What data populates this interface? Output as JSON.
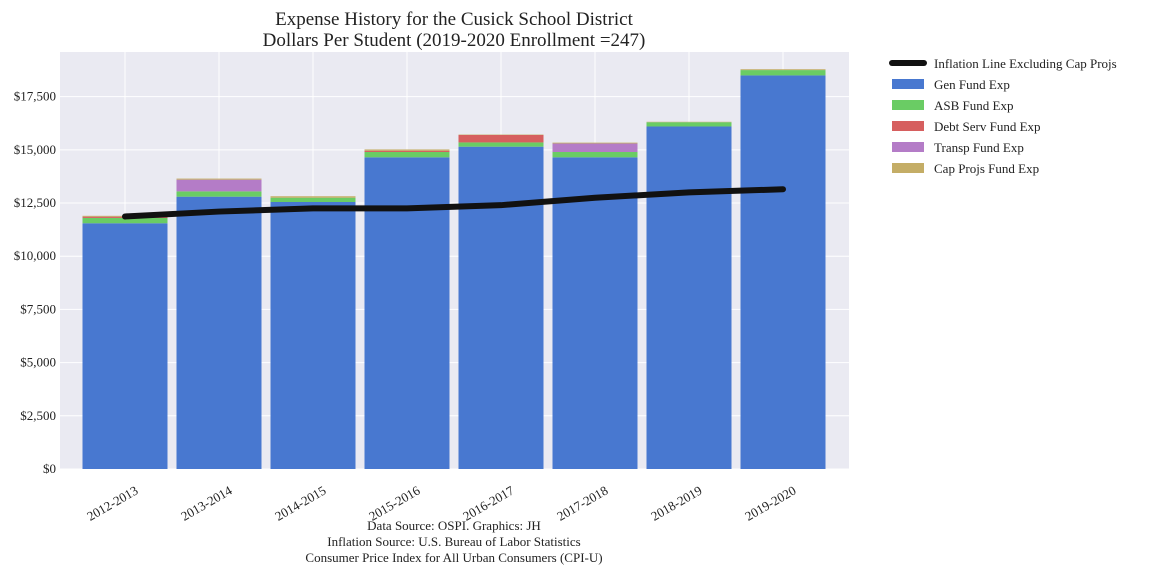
{
  "chart_data": {
    "type": "bar",
    "stacked": true,
    "title": "Expense History for the Cusick School District",
    "subtitle": "Dollars Per Student (2019-2020 Enrollment =247)",
    "categories": [
      "2012-2013",
      "2013-2014",
      "2014-2015",
      "2015-2016",
      "2016-2017",
      "2017-2018",
      "2018-2019",
      "2019-2020"
    ],
    "ylim": [
      0,
      19600
    ],
    "yticks": [
      0,
      2500,
      5000,
      7500,
      10000,
      12500,
      15000,
      17500
    ],
    "ytick_labels": [
      "$0",
      "$2,500",
      "$5,000",
      "$7,500",
      "$10,000",
      "$12,500",
      "$15,000",
      "$17,500"
    ],
    "grid": true,
    "legend_position": "outside-top-right",
    "series": [
      {
        "name": "Gen Fund Exp",
        "color": "#4878d0",
        "values": [
          11550,
          12800,
          12550,
          14650,
          15150,
          14650,
          16100,
          18500
        ]
      },
      {
        "name": "ASB Fund Exp",
        "color": "#6acc64",
        "values": [
          250,
          250,
          200,
          250,
          200,
          250,
          200,
          250
        ]
      },
      {
        "name": "Debt Serv Fund Exp",
        "color": "#d65f5f",
        "values": [
          60,
          0,
          0,
          60,
          350,
          0,
          0,
          0
        ]
      },
      {
        "name": "Transp Fund Exp",
        "color": "#b47cc7",
        "values": [
          0,
          550,
          0,
          0,
          0,
          400,
          0,
          0
        ]
      },
      {
        "name": "Cap Projs Fund Exp",
        "color": "#c4ad66",
        "values": [
          40,
          50,
          70,
          60,
          20,
          40,
          20,
          40
        ]
      }
    ],
    "line": {
      "name": "Inflation Line Excluding Cap Projs",
      "color": "#111111",
      "values": [
        11870,
        12100,
        12250,
        12250,
        12400,
        12750,
        13000,
        13150
      ]
    },
    "source_lines": [
      "Data Source: OSPI. Graphics: JH",
      "Inflation Source: U.S. Bureau of Labor Statistics",
      "Consumer Price Index for All Urban Consumers (CPI-U)"
    ]
  }
}
